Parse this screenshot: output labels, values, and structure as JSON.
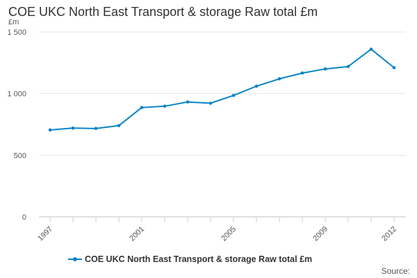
{
  "header": {
    "title": "COE UKC North East Transport & storage Raw total £m",
    "unit": "£m"
  },
  "footer": {
    "source": "Source:"
  },
  "chart_data": {
    "type": "line",
    "title": "COE UKC North East Transport & storage Raw total £m",
    "xlabel": "",
    "ylabel": "£m",
    "ylim": [
      0,
      1500
    ],
    "y_ticks": [
      0,
      500,
      1000,
      1500
    ],
    "y_tick_labels": [
      "0",
      "500",
      "1 000",
      "1 500"
    ],
    "x_tick_labels": [
      "1997",
      "2001",
      "2005",
      "2009",
      "2012"
    ],
    "grid": true,
    "legend": "bottom",
    "color": "#0b84c6",
    "x": [
      1997,
      1998,
      1999,
      2000,
      2001,
      2002,
      2003,
      2004,
      2005,
      2006,
      2007,
      2008,
      2009,
      2010,
      2011,
      2012
    ],
    "series": [
      {
        "name": "COE UKC North East Transport & storage Raw total £m",
        "values": [
          705,
          720,
          717,
          740,
          887,
          898,
          932,
          922,
          985,
          1060,
          1120,
          1167,
          1200,
          1220,
          1360,
          1210
        ]
      }
    ]
  }
}
